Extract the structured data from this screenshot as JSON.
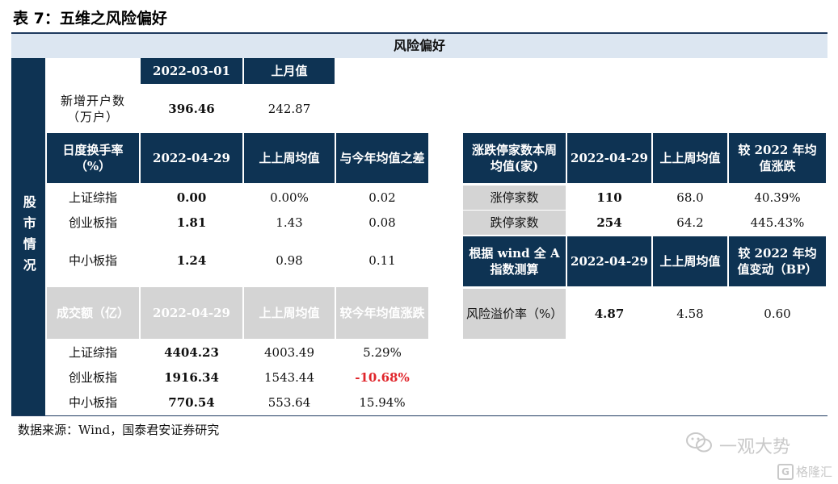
{
  "title": "表 7：五维之风险偏好",
  "header_band": "风险偏好",
  "side_label": "股市情况",
  "account": {
    "col_headers": [
      "2022-03-01",
      "上月值"
    ],
    "label": "新增开户数（万户）",
    "value": "396.46",
    "prev": "242.87"
  },
  "turnover": {
    "headers": [
      "日度换手率（%）",
      "2022-04-29",
      "上上周均值",
      "与今年均值之差"
    ],
    "rows": [
      {
        "name": "上证综指",
        "value": "0.00",
        "prev": "0.00%",
        "diff": "0.02"
      },
      {
        "name": "创业板指",
        "value": "1.81",
        "prev": "1.43",
        "diff": "0.08"
      },
      {
        "name": "中小板指",
        "value": "1.24",
        "prev": "0.98",
        "diff": "0.11"
      }
    ]
  },
  "volume": {
    "headers": [
      "成交额（亿）",
      "2022-04-29",
      "上上周均值",
      "较今年均值涨跌"
    ],
    "rows": [
      {
        "name": "上证综指",
        "value": "4404.23",
        "prev": "4003.49",
        "diff": "5.29%"
      },
      {
        "name": "创业板指",
        "value": "1916.34",
        "prev": "1543.44",
        "diff": "-10.68%"
      },
      {
        "name": "中小板指",
        "value": "770.54",
        "prev": "553.64",
        "diff": "15.94%"
      }
    ]
  },
  "limit": {
    "headers": [
      "涨跌停家数本周均值(家)",
      "2022-04-29",
      "上上周均值",
      "较 2022 年均值涨跌"
    ],
    "rows": [
      {
        "name": "涨停家数",
        "value": "110",
        "prev": "68.0",
        "diff": "40.39%"
      },
      {
        "name": "跌停家数",
        "value": "254",
        "prev": "64.2",
        "diff": "445.43%"
      }
    ]
  },
  "premium": {
    "headers": [
      "根据 wind 全 A 指数测算",
      "2022-04-29",
      "上上周均值",
      "较 2022 年均值变动（BP）"
    ],
    "row": {
      "name": "风险溢价率（%）",
      "value": "4.87",
      "prev": "4.58",
      "diff": "0.60"
    }
  },
  "source": "数据来源：Wind，国泰君安证券研究",
  "watermark": {
    "brand": "一观大势",
    "logo": "格隆汇"
  },
  "colors": {
    "navy": "#0e3353",
    "band": "#dce6f1",
    "grey": "#d4d4d4",
    "negative": "#e0262c"
  }
}
